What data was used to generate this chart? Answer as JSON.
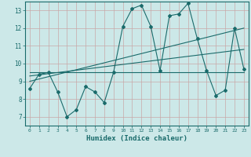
{
  "xlabel": "Humidex (Indice chaleur)",
  "background_color": "#cce8e8",
  "grid_color": "#c8a8a8",
  "line_color": "#1a6b6b",
  "xlim": [
    -0.5,
    23.5
  ],
  "ylim": [
    6.5,
    13.5
  ],
  "yticks": [
    7,
    8,
    9,
    10,
    11,
    12,
    13
  ],
  "xticks": [
    0,
    1,
    2,
    3,
    4,
    5,
    6,
    7,
    8,
    9,
    10,
    11,
    12,
    13,
    14,
    15,
    16,
    17,
    18,
    19,
    20,
    21,
    22,
    23
  ],
  "series1_x": [
    0,
    1,
    2,
    3,
    4,
    5,
    6,
    7,
    8,
    9,
    10,
    11,
    12,
    13,
    14,
    15,
    16,
    17,
    18,
    19,
    20,
    21,
    22,
    23
  ],
  "series1_y": [
    8.6,
    9.4,
    9.5,
    8.4,
    7.0,
    7.4,
    8.7,
    8.4,
    7.8,
    9.5,
    12.1,
    13.1,
    13.3,
    12.1,
    9.6,
    12.7,
    12.8,
    13.4,
    11.4,
    9.6,
    8.2,
    8.5,
    12.0,
    9.7
  ],
  "trend1_x": [
    0,
    23
  ],
  "trend1_y": [
    9.5,
    9.5
  ],
  "trend2_x": [
    0,
    23
  ],
  "trend2_y": [
    9.3,
    10.8
  ],
  "trend3_x": [
    0,
    23
  ],
  "trend3_y": [
    9.0,
    12.0
  ]
}
